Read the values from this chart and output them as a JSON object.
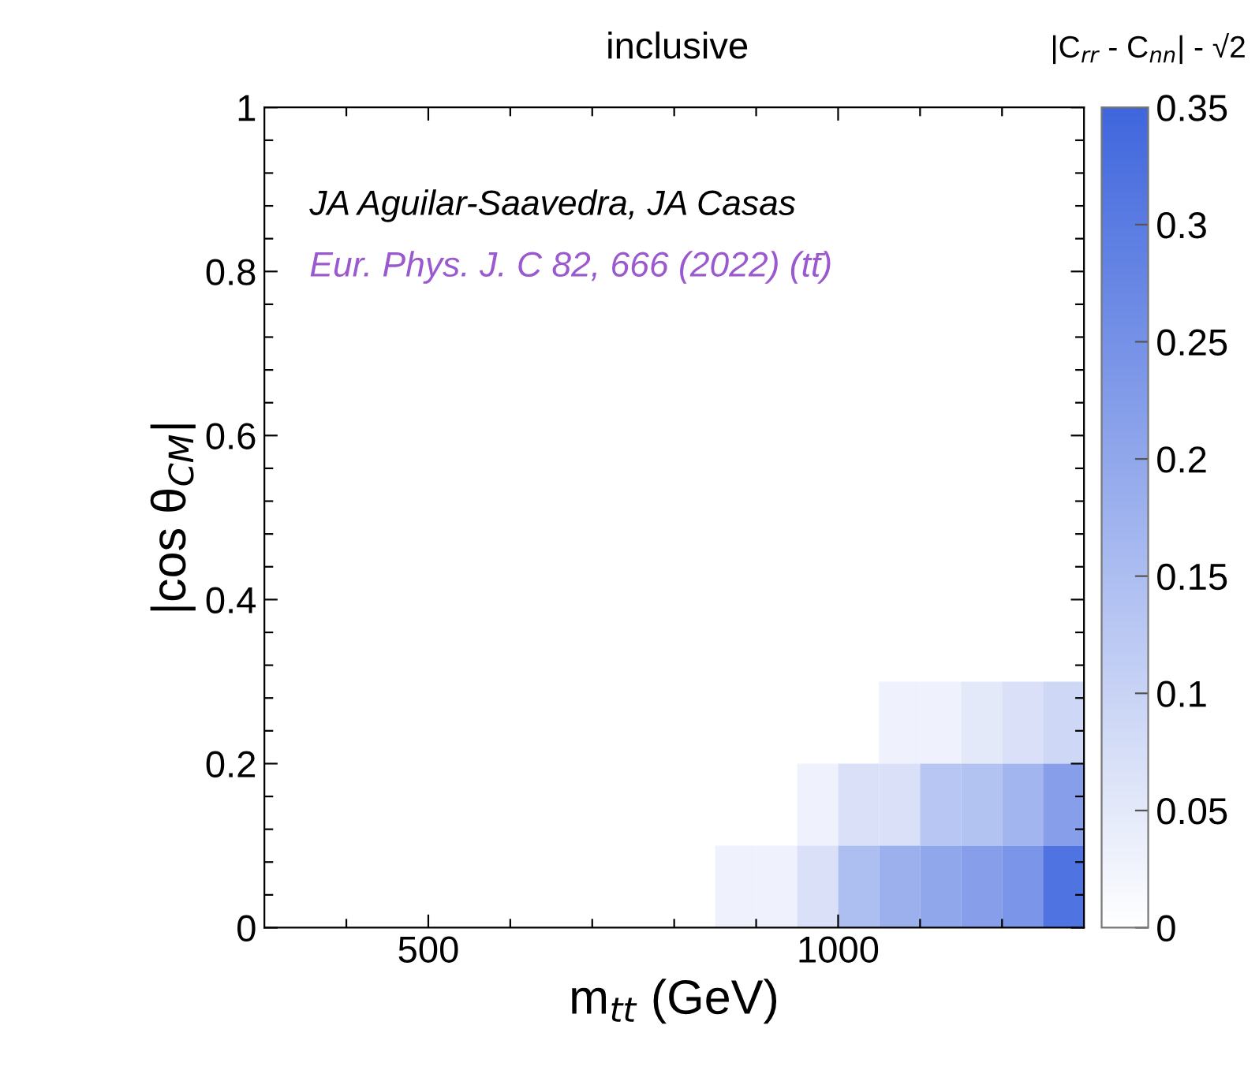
{
  "chart_data": {
    "type": "heatmap",
    "title": "inclusive",
    "clabel": "|C$_{rr}$ - C$_{nn}$| - √2",
    "xlabel": "m$_{tt}$ (GeV)",
    "ylabel": "|cos θ$_{CM}$|",
    "annotations": [
      "JA Aguilar-Saavedra, JA Casas",
      "Eur. Phys. J. C 82, 666 (2022) (tt̄)"
    ],
    "x": [
      875,
      925,
      975,
      1025,
      1075,
      1125,
      1175,
      1225,
      1275
    ],
    "y": [
      0.25,
      0.15,
      0.05
    ],
    "cells": [
      [
        null,
        null,
        null,
        null,
        0.03,
        0.03,
        0.05,
        0.07,
        0.09
      ],
      [
        null,
        null,
        0.03,
        0.07,
        0.07,
        0.13,
        0.14,
        0.17,
        0.22
      ],
      [
        0.03,
        0.03,
        0.07,
        0.15,
        0.18,
        0.2,
        0.22,
        0.24,
        0.32
      ]
    ],
    "color": "#3f66dd",
    "clim": [
      0,
      0.35
    ],
    "cticks": [
      0,
      0.05,
      0.1,
      0.15,
      0.2,
      0.25,
      0.3,
      0.35
    ],
    "xlim": [
      300,
      1300
    ],
    "xticks": [
      {
        "value": 400,
        "label": null
      },
      500,
      {
        "value": 600,
        "label": null
      },
      {
        "value": 700,
        "label": null
      },
      {
        "value": 800,
        "label": null
      },
      {
        "value": 900,
        "label": null
      },
      1000,
      {
        "value": 1100,
        "label": null
      },
      {
        "value": 1200,
        "label": null
      }
    ],
    "ylim": [
      0,
      1
    ],
    "yticks": [
      0,
      {
        "value": 0.04,
        "label": null
      },
      {
        "value": 0.08,
        "label": null
      },
      {
        "value": 0.12,
        "label": null
      },
      {
        "value": 0.16,
        "label": null
      },
      0.2,
      {
        "value": 0.24,
        "label": null
      },
      {
        "value": 0.28,
        "label": null
      },
      {
        "value": 0.32,
        "label": null
      },
      {
        "value": 0.36,
        "label": null
      },
      0.4,
      {
        "value": 0.44,
        "label": null
      },
      {
        "value": 0.48,
        "label": null
      },
      {
        "value": 0.52,
        "label": null
      },
      {
        "value": 0.56,
        "label": null
      },
      0.6,
      {
        "value": 0.64,
        "label": null
      },
      {
        "value": 0.68,
        "label": null
      },
      {
        "value": 0.72,
        "label": null
      },
      {
        "value": 0.76,
        "label": null
      },
      0.8,
      {
        "value": 0.84,
        "label": null
      },
      {
        "value": 0.88,
        "label": null
      },
      {
        "value": 0.92,
        "label": null
      },
      {
        "value": 0.96,
        "label": null
      },
      1
    ]
  }
}
